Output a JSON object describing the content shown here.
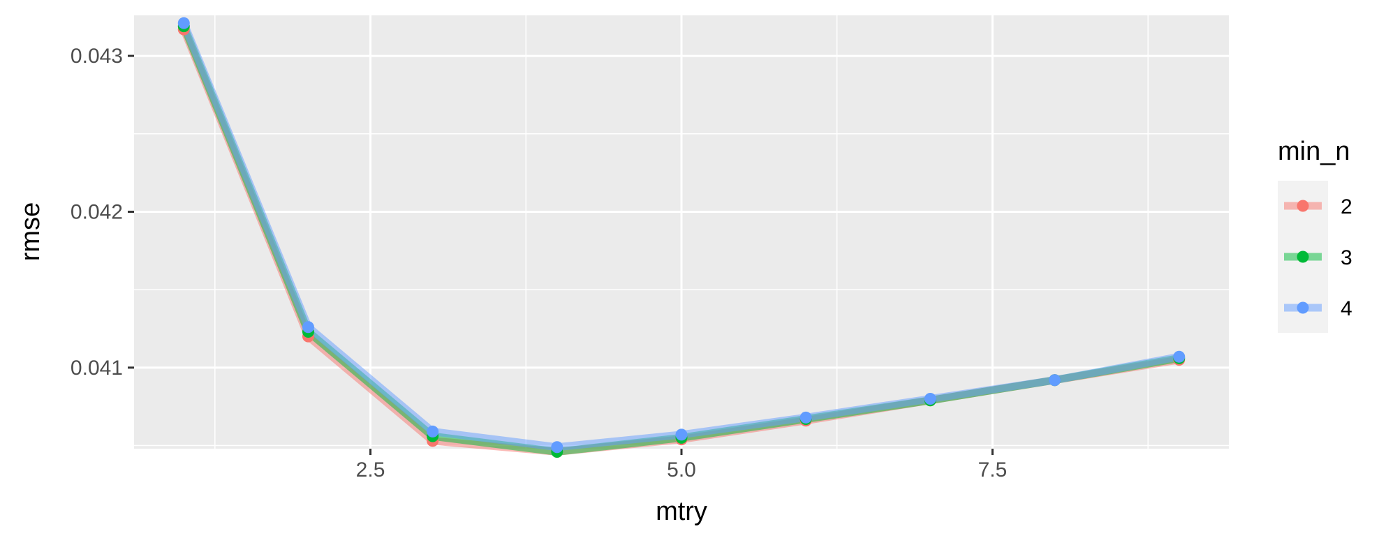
{
  "chart_data": {
    "type": "line",
    "title": "",
    "xlabel": "mtry",
    "ylabel": "rmse",
    "xlim": [
      0.6,
      9.4
    ],
    "ylim": [
      0.04048,
      0.04326
    ],
    "x_ticks": [
      2.5,
      5.0,
      7.5
    ],
    "x_tick_labels": [
      "2.5",
      "5.0",
      "7.5"
    ],
    "y_ticks": [
      0.041,
      0.042,
      0.043
    ],
    "y_tick_labels": [
      "0.041",
      "0.042",
      "0.043"
    ],
    "grid": true,
    "legend": {
      "title": "min_n",
      "position": "right"
    },
    "x": [
      1,
      2,
      3,
      4,
      5,
      6,
      7,
      8,
      9
    ],
    "series": [
      {
        "name": "2",
        "color": "#F8766D",
        "values": [
          0.04317,
          0.0412,
          0.04053,
          0.04046,
          0.04054,
          0.04066,
          0.04079,
          0.04092,
          0.04105
        ]
      },
      {
        "name": "3",
        "color": "#00BA38",
        "values": [
          0.04319,
          0.04123,
          0.04056,
          0.04046,
          0.04055,
          0.04067,
          0.04079,
          0.04092,
          0.04106
        ]
      },
      {
        "name": "4",
        "color": "#619CFF",
        "values": [
          0.04321,
          0.04126,
          0.04059,
          0.04049,
          0.04057,
          0.04068,
          0.0408,
          0.04092,
          0.04107
        ]
      }
    ]
  }
}
